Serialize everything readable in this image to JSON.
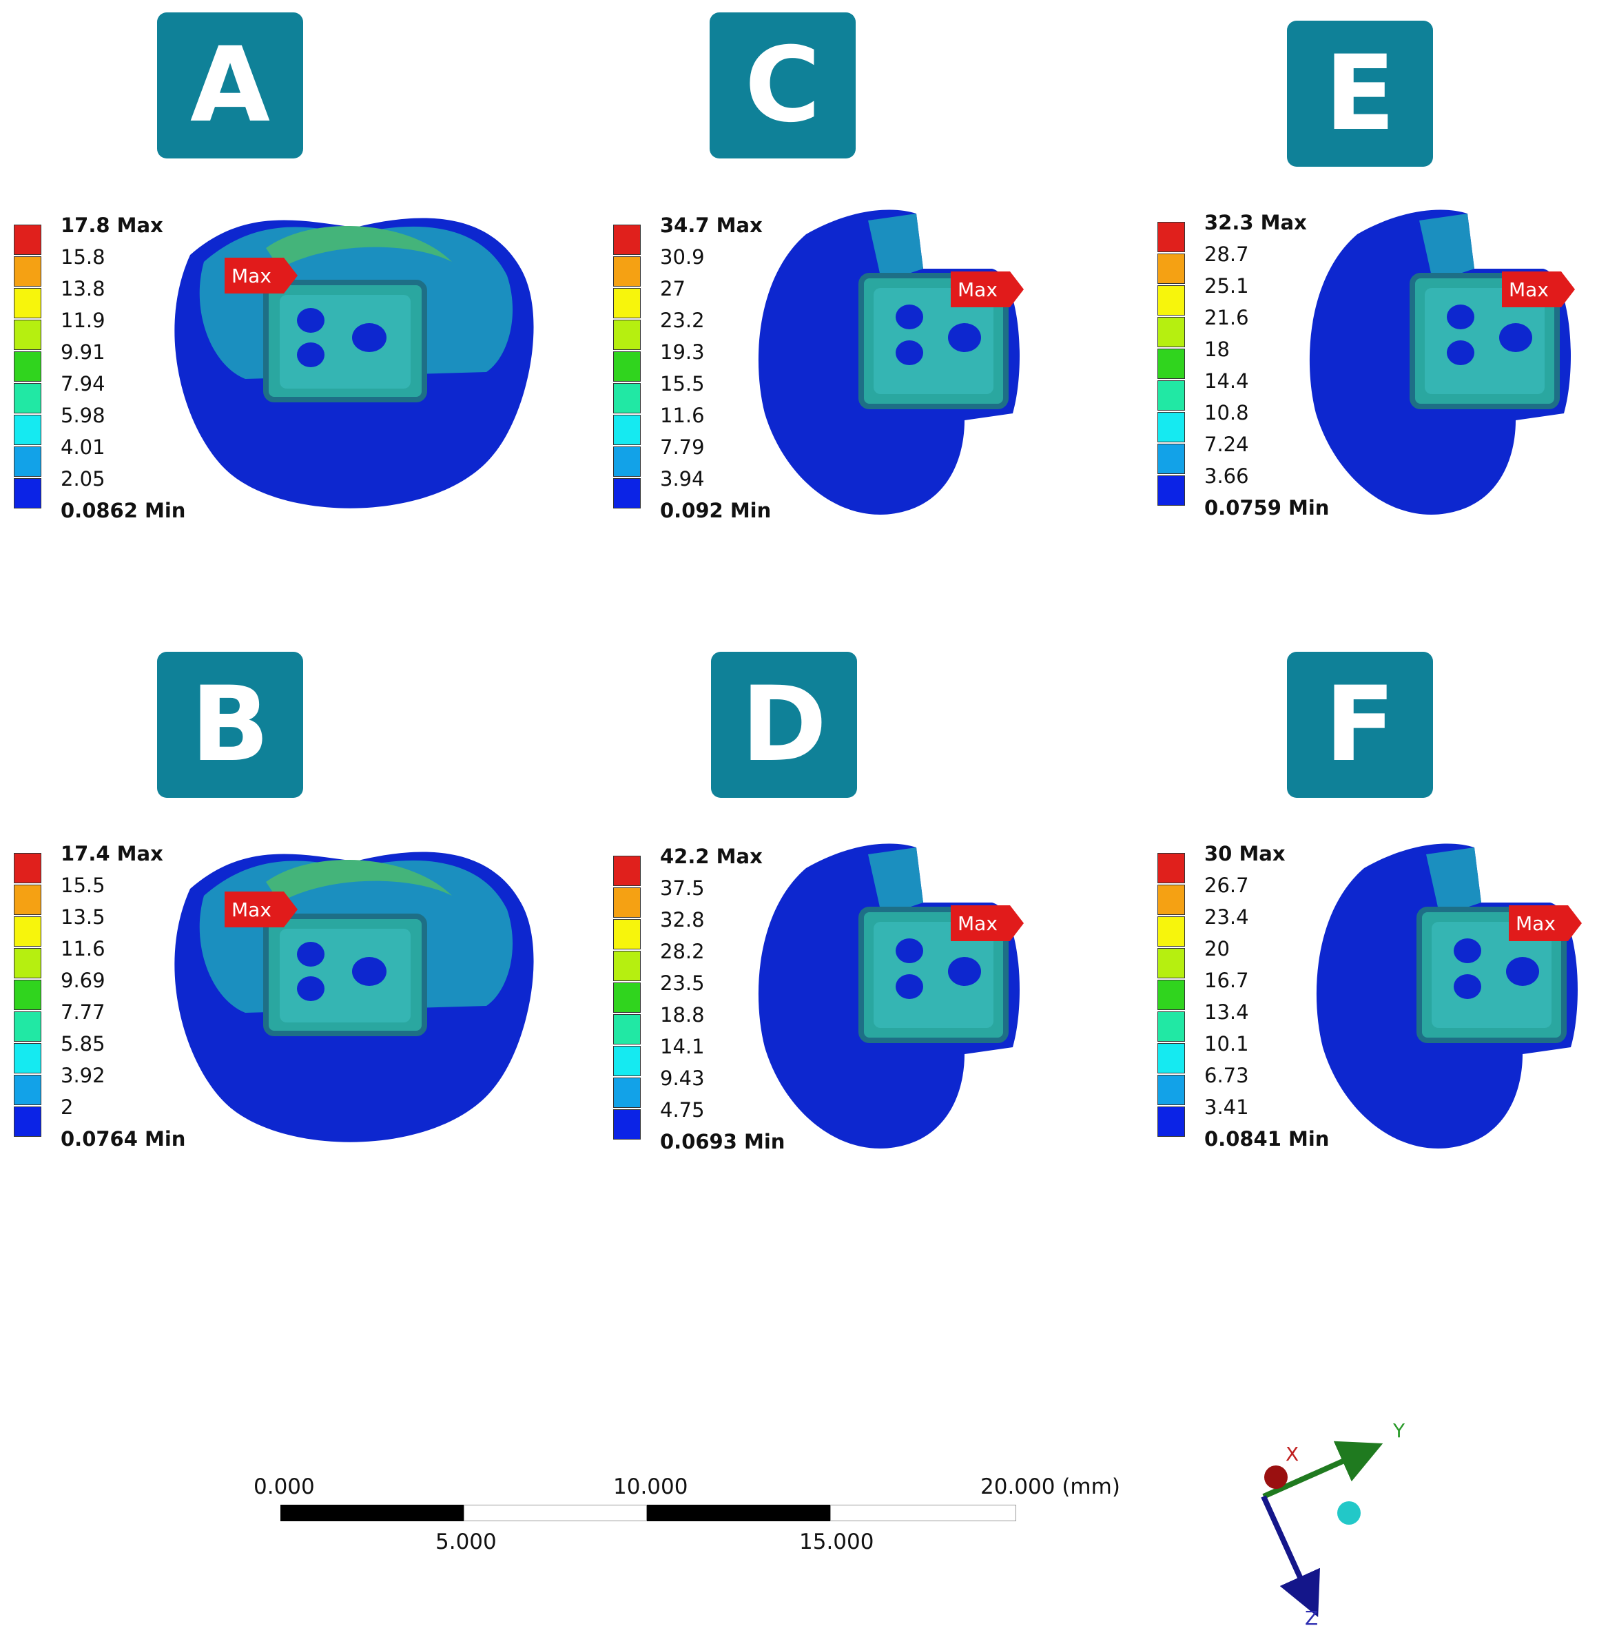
{
  "panels": [
    {
      "id": "A",
      "max_label": "17.8 Max",
      "min_label": "0.0862 Min",
      "ticks": [
        "15.8",
        "13.8",
        "11.9",
        "9.91",
        "7.94",
        "5.98",
        "4.01",
        "2.05"
      ],
      "marker": "Max"
    },
    {
      "id": "C",
      "max_label": "34.7 Max",
      "min_label": "0.092 Min",
      "ticks": [
        "30.9",
        "27",
        "23.2",
        "19.3",
        "15.5",
        "11.6",
        "7.79",
        "3.94"
      ],
      "marker": "Max"
    },
    {
      "id": "E",
      "max_label": "32.3 Max",
      "min_label": "0.0759 Min",
      "ticks": [
        "28.7",
        "25.1",
        "21.6",
        "18",
        "14.4",
        "10.8",
        "7.24",
        "3.66"
      ],
      "marker": "Max"
    },
    {
      "id": "B",
      "max_label": "17.4 Max",
      "min_label": "0.0764 Min",
      "ticks": [
        "15.5",
        "13.5",
        "11.6",
        "9.69",
        "7.77",
        "5.85",
        "3.92",
        "2"
      ],
      "marker": "Max"
    },
    {
      "id": "D",
      "max_label": "42.2 Max",
      "min_label": "0.0693 Min",
      "ticks": [
        "37.5",
        "32.8",
        "28.2",
        "23.5",
        "18.8",
        "14.1",
        "9.43",
        "4.75"
      ],
      "marker": "Max"
    },
    {
      "id": "F",
      "max_label": "30 Max",
      "min_label": "0.0841 Min",
      "ticks": [
        "26.7",
        "23.4",
        "20",
        "16.7",
        "13.4",
        "10.1",
        "6.73",
        "3.41"
      ],
      "marker": "Max"
    }
  ],
  "colormap": [
    "#e0201c",
    "#f5a113",
    "#f7f50c",
    "#b6ef10",
    "#30d41e",
    "#21e8a4",
    "#15eaf1",
    "#12a2e8",
    "#0b23e6"
  ],
  "scalebar": {
    "top_labels": [
      "0.000",
      "10.000",
      "20.000 (mm)"
    ],
    "bottom_labels": [
      "5.000",
      "15.000"
    ]
  },
  "triad": {
    "x": "X",
    "y": "Y",
    "z": "Z"
  }
}
